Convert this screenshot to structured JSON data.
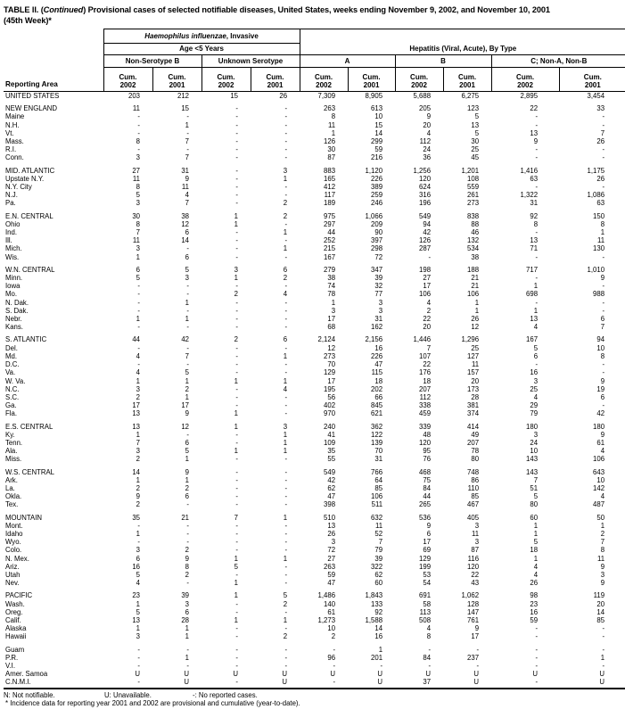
{
  "title": {
    "part1": "TABLE II. (",
    "continued": "Continued",
    "part2": ") Provisional cases of selected notifiable diseases, United States, weeks ending November 9, 2002, and November 10, 2001",
    "line2": "(45th Week)*"
  },
  "header": {
    "reporting_area": "Reporting Area",
    "hib_italic": "Haemophilus influenzae",
    "hib_rest": ", Invasive",
    "age_group": "Age <5 Years",
    "hepatitis": "Hepatitis (Viral, Acute), By Type",
    "groups": [
      "Non-Serotype B",
      "Unknown Serotype",
      "A",
      "B",
      "C; Non-A, Non-B"
    ],
    "cum_label": "Cum.",
    "years": [
      "2002",
      "2001",
      "2002",
      "2001",
      "2002",
      "2001",
      "2002",
      "2001",
      "2002",
      "2001"
    ]
  },
  "sections": [
    {
      "rows": [
        {
          "area": "UNITED STATES",
          "values": [
            "203",
            "212",
            "15",
            "26",
            "7,309",
            "8,905",
            "5,688",
            "6,275",
            "2,895",
            "3,454"
          ]
        }
      ]
    },
    {
      "rows": [
        {
          "area": "NEW ENGLAND",
          "values": [
            "11",
            "15",
            "-",
            "-",
            "263",
            "613",
            "205",
            "123",
            "22",
            "33"
          ]
        },
        {
          "area": "Maine",
          "values": [
            "-",
            "-",
            "-",
            "-",
            "8",
            "10",
            "9",
            "5",
            "-",
            "-"
          ]
        },
        {
          "area": "N.H.",
          "values": [
            "-",
            "1",
            "-",
            "-",
            "11",
            "15",
            "20",
            "13",
            "-",
            "-"
          ]
        },
        {
          "area": "Vt.",
          "values": [
            "-",
            "-",
            "-",
            "-",
            "1",
            "14",
            "4",
            "5",
            "13",
            "7"
          ]
        },
        {
          "area": "Mass.",
          "values": [
            "8",
            "7",
            "-",
            "-",
            "126",
            "299",
            "112",
            "30",
            "9",
            "26"
          ]
        },
        {
          "area": "R.I.",
          "values": [
            "-",
            "-",
            "-",
            "-",
            "30",
            "59",
            "24",
            "25",
            "-",
            "-"
          ]
        },
        {
          "area": "Conn.",
          "values": [
            "3",
            "7",
            "-",
            "-",
            "87",
            "216",
            "36",
            "45",
            "-",
            "-"
          ]
        }
      ]
    },
    {
      "rows": [
        {
          "area": "MID. ATLANTIC",
          "values": [
            "27",
            "31",
            "-",
            "3",
            "883",
            "1,120",
            "1,256",
            "1,201",
            "1,416",
            "1,175"
          ]
        },
        {
          "area": "Upstate N.Y.",
          "values": [
            "11",
            "9",
            "-",
            "1",
            "165",
            "226",
            "120",
            "108",
            "63",
            "26"
          ]
        },
        {
          "area": "N.Y. City",
          "values": [
            "8",
            "11",
            "-",
            "-",
            "412",
            "389",
            "624",
            "559",
            "-",
            "-"
          ]
        },
        {
          "area": "N.J.",
          "values": [
            "5",
            "4",
            "-",
            "-",
            "117",
            "259",
            "316",
            "261",
            "1,322",
            "1,086"
          ]
        },
        {
          "area": "Pa.",
          "values": [
            "3",
            "7",
            "-",
            "2",
            "189",
            "246",
            "196",
            "273",
            "31",
            "63"
          ]
        }
      ]
    },
    {
      "rows": [
        {
          "area": "E.N. CENTRAL",
          "values": [
            "30",
            "38",
            "1",
            "2",
            "975",
            "1,066",
            "549",
            "838",
            "92",
            "150"
          ]
        },
        {
          "area": "Ohio",
          "values": [
            "8",
            "12",
            "1",
            "-",
            "297",
            "209",
            "94",
            "88",
            "8",
            "8"
          ]
        },
        {
          "area": "Ind.",
          "values": [
            "7",
            "6",
            "-",
            "1",
            "44",
            "90",
            "42",
            "46",
            "-",
            "1"
          ]
        },
        {
          "area": "Ill.",
          "values": [
            "11",
            "14",
            "-",
            "-",
            "252",
            "397",
            "126",
            "132",
            "13",
            "11"
          ]
        },
        {
          "area": "Mich.",
          "values": [
            "3",
            "-",
            "-",
            "1",
            "215",
            "298",
            "287",
            "534",
            "71",
            "130"
          ]
        },
        {
          "area": "Wis.",
          "values": [
            "1",
            "6",
            "-",
            "-",
            "167",
            "72",
            "-",
            "38",
            "-",
            "-"
          ]
        }
      ]
    },
    {
      "rows": [
        {
          "area": "W.N. CENTRAL",
          "values": [
            "6",
            "5",
            "3",
            "6",
            "279",
            "347",
            "198",
            "188",
            "717",
            "1,010"
          ]
        },
        {
          "area": "Minn.",
          "values": [
            "5",
            "3",
            "1",
            "2",
            "38",
            "39",
            "27",
            "21",
            "-",
            "9"
          ]
        },
        {
          "area": "Iowa",
          "values": [
            "-",
            "-",
            "-",
            "-",
            "74",
            "32",
            "17",
            "21",
            "1",
            "-"
          ]
        },
        {
          "area": "Mo.",
          "values": [
            "-",
            "-",
            "2",
            "4",
            "78",
            "77",
            "106",
            "106",
            "698",
            "988"
          ]
        },
        {
          "area": "N. Dak.",
          "values": [
            "-",
            "1",
            "-",
            "-",
            "1",
            "3",
            "4",
            "1",
            "-",
            "-"
          ]
        },
        {
          "area": "S. Dak.",
          "values": [
            "-",
            "-",
            "-",
            "-",
            "3",
            "3",
            "2",
            "1",
            "1",
            "-"
          ]
        },
        {
          "area": "Nebr.",
          "values": [
            "1",
            "1",
            "-",
            "-",
            "17",
            "31",
            "22",
            "26",
            "13",
            "6"
          ]
        },
        {
          "area": "Kans.",
          "values": [
            "-",
            "-",
            "-",
            "-",
            "68",
            "162",
            "20",
            "12",
            "4",
            "7"
          ]
        }
      ]
    },
    {
      "rows": [
        {
          "area": "S. ATLANTIC",
          "values": [
            "44",
            "42",
            "2",
            "6",
            "2,124",
            "2,156",
            "1,446",
            "1,296",
            "167",
            "94"
          ]
        },
        {
          "area": "Del.",
          "values": [
            "-",
            "-",
            "-",
            "-",
            "12",
            "16",
            "7",
            "25",
            "5",
            "10"
          ]
        },
        {
          "area": "Md.",
          "values": [
            "4",
            "7",
            "-",
            "1",
            "273",
            "226",
            "107",
            "127",
            "6",
            "8"
          ]
        },
        {
          "area": "D.C.",
          "values": [
            "-",
            "-",
            "-",
            "-",
            "70",
            "47",
            "22",
            "11",
            "-",
            "-"
          ]
        },
        {
          "area": "Va.",
          "values": [
            "4",
            "5",
            "-",
            "-",
            "129",
            "115",
            "176",
            "157",
            "16",
            "-"
          ]
        },
        {
          "area": "W. Va.",
          "values": [
            "1",
            "1",
            "1",
            "1",
            "17",
            "18",
            "18",
            "20",
            "3",
            "9"
          ]
        },
        {
          "area": "N.C.",
          "values": [
            "3",
            "2",
            "-",
            "4",
            "195",
            "202",
            "207",
            "173",
            "25",
            "19"
          ]
        },
        {
          "area": "S.C.",
          "values": [
            "2",
            "1",
            "-",
            "-",
            "56",
            "66",
            "112",
            "28",
            "4",
            "6"
          ]
        },
        {
          "area": "Ga.",
          "values": [
            "17",
            "17",
            "-",
            "-",
            "402",
            "845",
            "338",
            "381",
            "29",
            "-"
          ]
        },
        {
          "area": "Fla.",
          "values": [
            "13",
            "9",
            "1",
            "-",
            "970",
            "621",
            "459",
            "374",
            "79",
            "42"
          ]
        }
      ]
    },
    {
      "rows": [
        {
          "area": "E.S. CENTRAL",
          "values": [
            "13",
            "12",
            "1",
            "3",
            "240",
            "362",
            "339",
            "414",
            "180",
            "180"
          ]
        },
        {
          "area": "Ky.",
          "values": [
            "1",
            "-",
            "-",
            "1",
            "41",
            "122",
            "48",
            "49",
            "3",
            "9"
          ]
        },
        {
          "area": "Tenn.",
          "values": [
            "7",
            "6",
            "-",
            "1",
            "109",
            "139",
            "120",
            "207",
            "24",
            "61"
          ]
        },
        {
          "area": "Ala.",
          "values": [
            "3",
            "5",
            "1",
            "1",
            "35",
            "70",
            "95",
            "78",
            "10",
            "4"
          ]
        },
        {
          "area": "Miss.",
          "values": [
            "2",
            "1",
            "-",
            "-",
            "55",
            "31",
            "76",
            "80",
            "143",
            "106"
          ]
        }
      ]
    },
    {
      "rows": [
        {
          "area": "W.S. CENTRAL",
          "values": [
            "14",
            "9",
            "-",
            "-",
            "549",
            "766",
            "468",
            "748",
            "143",
            "643"
          ]
        },
        {
          "area": "Ark.",
          "values": [
            "1",
            "1",
            "-",
            "-",
            "42",
            "64",
            "75",
            "86",
            "7",
            "10"
          ]
        },
        {
          "area": "La.",
          "values": [
            "2",
            "2",
            "-",
            "-",
            "62",
            "85",
            "84",
            "110",
            "51",
            "142"
          ]
        },
        {
          "area": "Okla.",
          "values": [
            "9",
            "6",
            "-",
            "-",
            "47",
            "106",
            "44",
            "85",
            "5",
            "4"
          ]
        },
        {
          "area": "Tex.",
          "values": [
            "2",
            "-",
            "-",
            "-",
            "398",
            "511",
            "265",
            "467",
            "80",
            "487"
          ]
        }
      ]
    },
    {
      "rows": [
        {
          "area": "MOUNTAIN",
          "values": [
            "35",
            "21",
            "7",
            "1",
            "510",
            "632",
            "536",
            "405",
            "60",
            "50"
          ]
        },
        {
          "area": "Mont.",
          "values": [
            "-",
            "-",
            "-",
            "-",
            "13",
            "11",
            "9",
            "3",
            "1",
            "1"
          ]
        },
        {
          "area": "Idaho",
          "values": [
            "1",
            "-",
            "-",
            "-",
            "26",
            "52",
            "6",
            "11",
            "1",
            "2"
          ]
        },
        {
          "area": "Wyo.",
          "values": [
            "-",
            "-",
            "-",
            "-",
            "3",
            "7",
            "17",
            "3",
            "5",
            "7"
          ]
        },
        {
          "area": "Colo.",
          "values": [
            "3",
            "2",
            "-",
            "-",
            "72",
            "79",
            "69",
            "87",
            "18",
            "8"
          ]
        },
        {
          "area": "N. Mex.",
          "values": [
            "6",
            "9",
            "1",
            "1",
            "27",
            "39",
            "129",
            "116",
            "1",
            "11"
          ]
        },
        {
          "area": "Ariz.",
          "values": [
            "16",
            "8",
            "5",
            "-",
            "263",
            "322",
            "199",
            "120",
            "4",
            "9"
          ]
        },
        {
          "area": "Utah",
          "values": [
            "5",
            "2",
            "-",
            "-",
            "59",
            "62",
            "53",
            "22",
            "4",
            "3"
          ]
        },
        {
          "area": "Nev.",
          "values": [
            "4",
            "-",
            "1",
            "-",
            "47",
            "60",
            "54",
            "43",
            "26",
            "9"
          ]
        }
      ]
    },
    {
      "rows": [
        {
          "area": "PACIFIC",
          "values": [
            "23",
            "39",
            "1",
            "5",
            "1,486",
            "1,843",
            "691",
            "1,062",
            "98",
            "119"
          ]
        },
        {
          "area": "Wash.",
          "values": [
            "1",
            "3",
            "-",
            "2",
            "140",
            "133",
            "58",
            "128",
            "23",
            "20"
          ]
        },
        {
          "area": "Oreg.",
          "values": [
            "5",
            "6",
            "-",
            "-",
            "61",
            "92",
            "113",
            "147",
            "16",
            "14"
          ]
        },
        {
          "area": "Calif.",
          "values": [
            "13",
            "28",
            "1",
            "1",
            "1,273",
            "1,588",
            "508",
            "761",
            "59",
            "85"
          ]
        },
        {
          "area": "Alaska",
          "values": [
            "1",
            "1",
            "-",
            "-",
            "10",
            "14",
            "4",
            "9",
            "-",
            "-"
          ]
        },
        {
          "area": "Hawaii",
          "values": [
            "3",
            "1",
            "-",
            "2",
            "2",
            "16",
            "8",
            "17",
            "-",
            "-"
          ]
        }
      ]
    },
    {
      "rows": [
        {
          "area": "Guam",
          "values": [
            "-",
            "-",
            "-",
            "-",
            "-",
            "1",
            "-",
            "-",
            "-",
            "-"
          ]
        },
        {
          "area": "P.R.",
          "values": [
            "-",
            "1",
            "-",
            "-",
            "96",
            "201",
            "84",
            "237",
            "-",
            "1"
          ]
        },
        {
          "area": "V.I.",
          "values": [
            "-",
            "-",
            "-",
            "-",
            "-",
            "-",
            "-",
            "-",
            "-",
            "-"
          ]
        },
        {
          "area": "Amer. Samoa",
          "values": [
            "U",
            "U",
            "U",
            "U",
            "U",
            "U",
            "U",
            "U",
            "U",
            "U"
          ]
        },
        {
          "area": "C.N.M.I.",
          "values": [
            "-",
            "U",
            "-",
            "U",
            "-",
            "U",
            "37",
            "U",
            "-",
            "U"
          ]
        }
      ]
    }
  ],
  "footnotes": {
    "legend": [
      "N: Not notifiable.",
      "U: Unavailable.",
      "-: No reported cases."
    ],
    "note": "* Incidence data for reporting year 2001 and 2002 are provisional and cumulative (year-to-date)."
  }
}
